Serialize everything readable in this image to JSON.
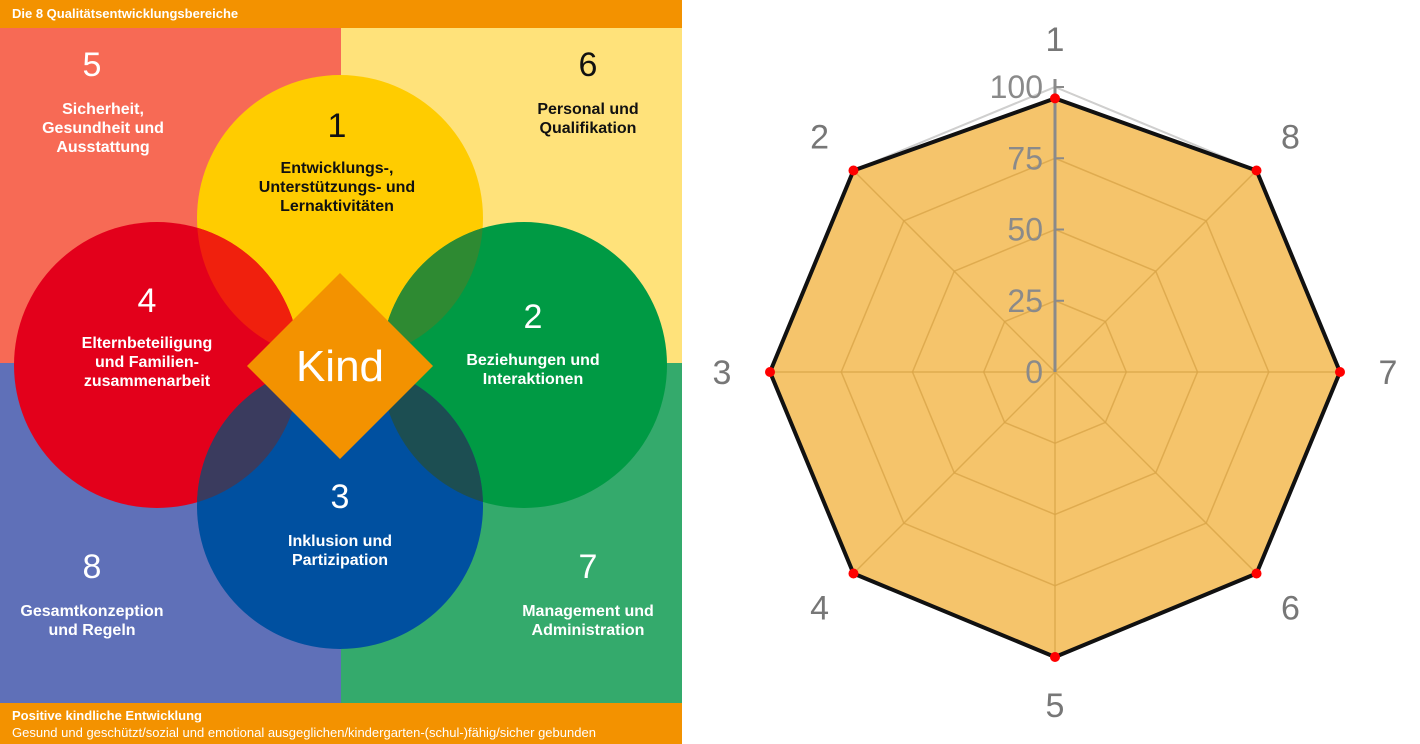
{
  "diagram": {
    "title": "Die 8 Qualitätsentwicklungsbereiche",
    "center": "Kind",
    "areas": [
      {
        "number": "1",
        "lines": [
          "Entwicklungs-,",
          "Unterstützungs- und",
          "Lernaktivitäten"
        ]
      },
      {
        "number": "2",
        "lines": [
          "Beziehungen und",
          "Interaktionen"
        ]
      },
      {
        "number": "3",
        "lines": [
          "Inklusion und",
          "Partizipation"
        ]
      },
      {
        "number": "4",
        "lines": [
          "Elternbeteiligung",
          "und Familien-",
          "zusammenarbeit"
        ]
      },
      {
        "number": "5",
        "lines": [
          "Sicherheit,",
          "Gesundheit und",
          "Ausstattung"
        ]
      },
      {
        "number": "6",
        "lines": [
          "Personal und",
          "Qualifikation"
        ]
      },
      {
        "number": "7",
        "lines": [
          "Management und",
          "Administration"
        ]
      },
      {
        "number": "8",
        "lines": [
          "Gesamtkonzeption",
          "und Regeln"
        ]
      }
    ],
    "footer_title": "Positive kindliche Entwicklung",
    "footer_text": "Gesund und geschützt/sozial und emotional ausgeglichen/kindergarten-(schul-)fähig/sicher gebunden",
    "colors": {
      "orange": "#f39200",
      "area1": "#ffcc00",
      "area2": "#009a44",
      "area3": "#0050a0",
      "area4": "#e3001b",
      "area5": "#f76a55",
      "area6": "#ffe27a",
      "area7": "#34aa6c",
      "area8": "#5f70b8"
    }
  },
  "chart_data": {
    "type": "radar",
    "axes": [
      "1",
      "8",
      "7",
      "6",
      "5",
      "4",
      "3",
      "2"
    ],
    "ticks": [
      "0",
      "25",
      "50",
      "75",
      "100"
    ],
    "range": [
      0,
      100
    ],
    "values": [
      96,
      100,
      100,
      100,
      100,
      100,
      100,
      100
    ],
    "colors": {
      "fill": "#f5c46b",
      "line": "#111111",
      "point": "#ff0000",
      "grid": "#d9a548",
      "axis": "#8a8a8a"
    }
  }
}
